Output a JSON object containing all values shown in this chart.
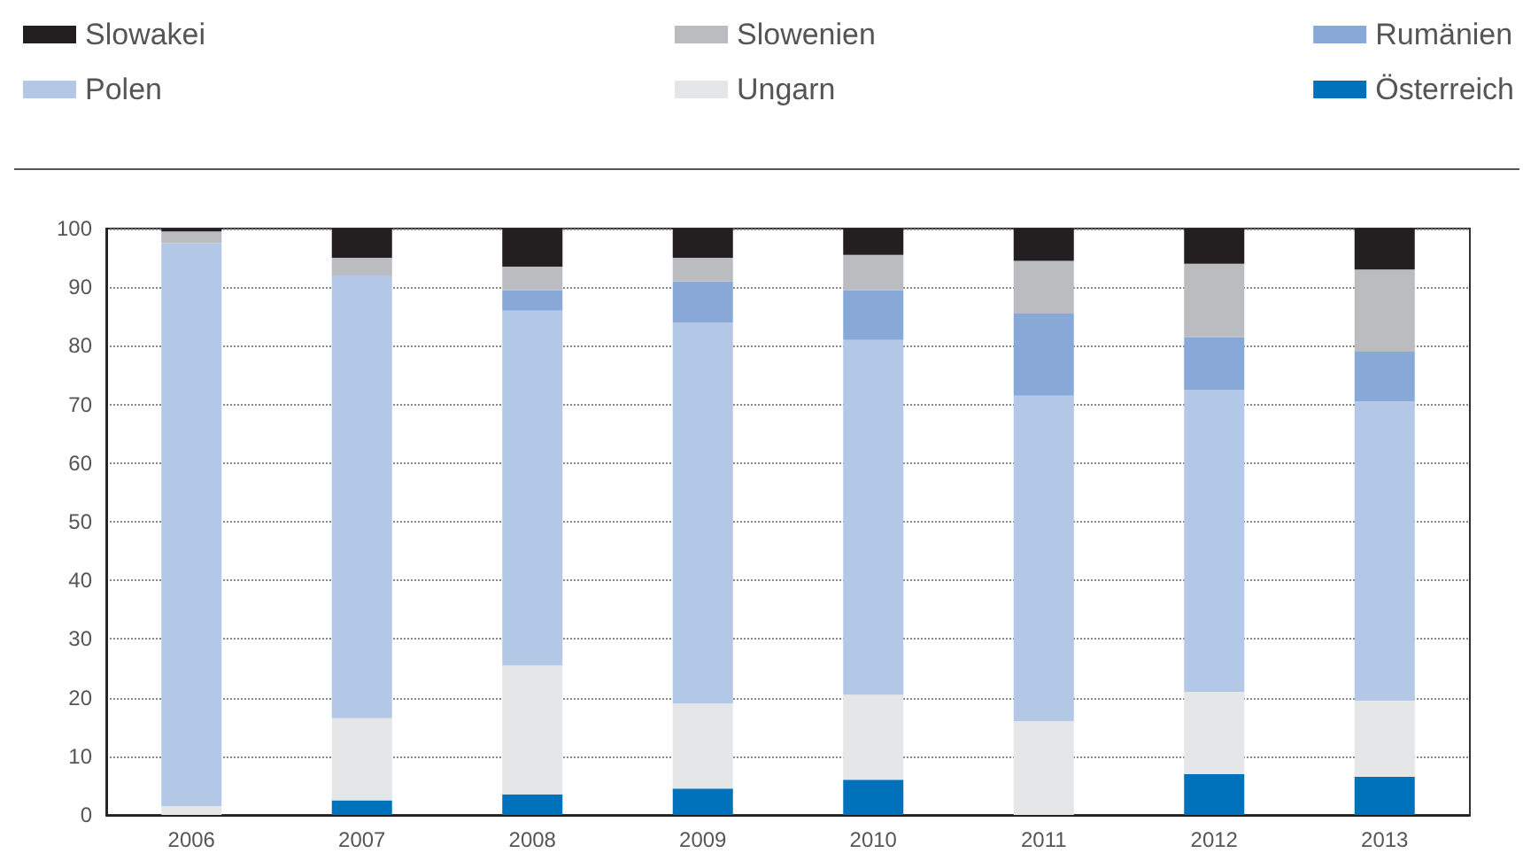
{
  "chart_data": {
    "type": "bar",
    "stacked": true,
    "categories": [
      "2006",
      "2007",
      "2008",
      "2009",
      "2010",
      "2011",
      "2012",
      "2013"
    ],
    "series": [
      {
        "name": "Österreich",
        "color": "#0072bc",
        "values": [
          0,
          2.5,
          3.5,
          4.5,
          6,
          0,
          7,
          6.5
        ]
      },
      {
        "name": "Ungarn",
        "color": "#e5e6e8",
        "values": [
          1.5,
          14,
          22,
          14.5,
          14.5,
          16,
          14,
          13
        ]
      },
      {
        "name": "Polen",
        "color": "#b3c7e6",
        "values": [
          96,
          75.5,
          60.5,
          65,
          60.5,
          55.5,
          51.5,
          51
        ]
      },
      {
        "name": "Rumänien",
        "color": "#88a8d8",
        "values": [
          0,
          0,
          3.5,
          7,
          8.5,
          14,
          9,
          8.5
        ]
      },
      {
        "name": "Slowenien",
        "color": "#bbbcbf",
        "values": [
          2,
          3,
          4,
          4,
          6,
          9,
          12.5,
          14
        ]
      },
      {
        "name": "Slowakei",
        "color": "#231f20",
        "values": [
          0.5,
          5,
          6.5,
          5,
          4.5,
          5.5,
          6,
          7
        ]
      }
    ],
    "ylim": [
      0,
      100
    ],
    "yticks": [
      0,
      10,
      20,
      30,
      40,
      50,
      60,
      70,
      80,
      90,
      100
    ],
    "grid": "y",
    "legend": "top"
  }
}
